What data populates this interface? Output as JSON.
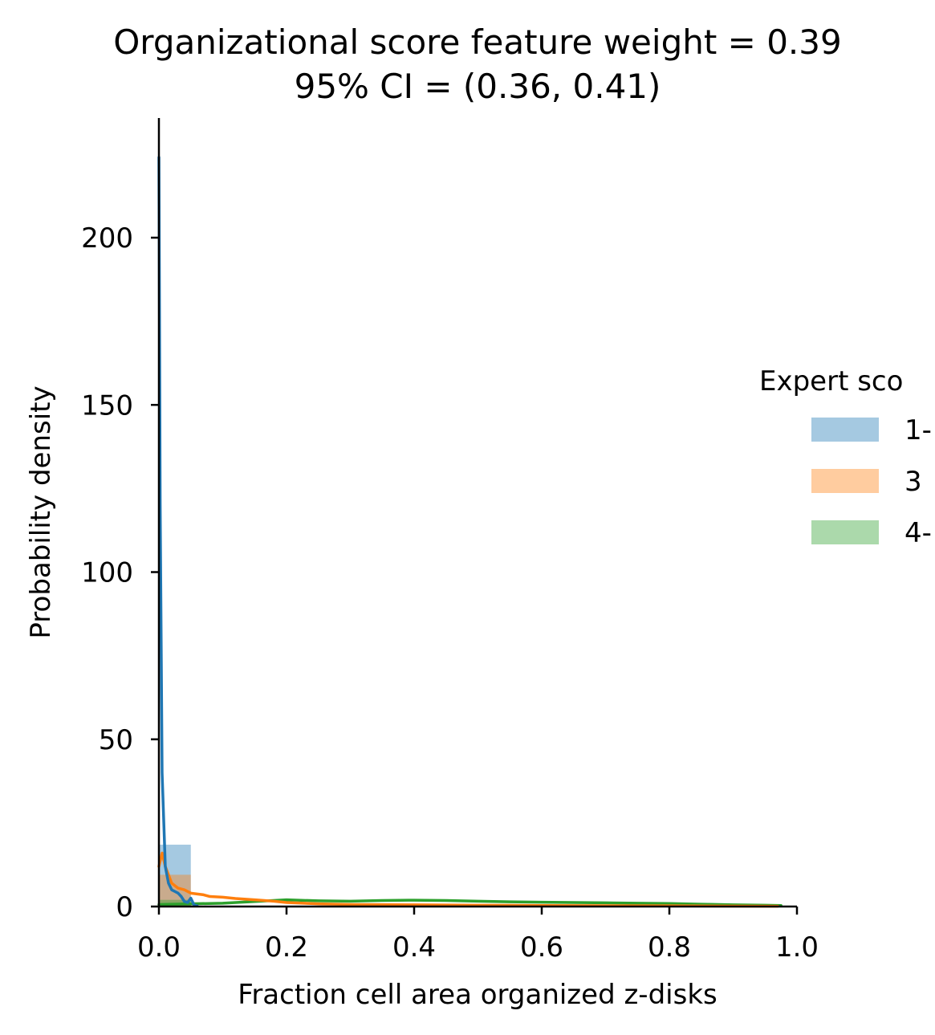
{
  "chart_data": {
    "type": "histogram",
    "title": "Organizational score feature weight = 0.39",
    "subtitle": "95% CI = (0.36, 0.41)",
    "xlabel": "Fraction cell area organized z-disks",
    "ylabel": "Probability density",
    "xlim": [
      0.0,
      1.0
    ],
    "ylim": [
      0,
      236
    ],
    "xticks": [
      0.0,
      0.2,
      0.4,
      0.6,
      0.8,
      1.0
    ],
    "xtick_labels": [
      "0.0",
      "0.2",
      "0.4",
      "0.6",
      "0.8",
      "1.0"
    ],
    "yticks": [
      0,
      50,
      100,
      150,
      200
    ],
    "ytick_labels": [
      "0",
      "50",
      "100",
      "150",
      "200"
    ],
    "grid": false,
    "legend": {
      "title": "Expert sco",
      "placement": "right, outside plot",
      "entries": [
        "1-",
        "3",
        "4-"
      ]
    },
    "series": [
      {
        "name": "1-",
        "color": "#1f77b4",
        "bars": [
          {
            "x0": 0.0,
            "x1": 0.05,
            "y": 18.5
          }
        ],
        "kde": [
          [
            0.0,
            224
          ],
          [
            0.002,
            120
          ],
          [
            0.005,
            40
          ],
          [
            0.01,
            12
          ],
          [
            0.015,
            7
          ],
          [
            0.02,
            5
          ],
          [
            0.025,
            4.5
          ],
          [
            0.03,
            4
          ],
          [
            0.035,
            3
          ],
          [
            0.04,
            1.5
          ],
          [
            0.045,
            1.2
          ],
          [
            0.05,
            2.5
          ],
          [
            0.055,
            0.5
          ],
          [
            0.06,
            0.2
          ]
        ]
      },
      {
        "name": "3",
        "color": "#ff7f0e",
        "bars": [
          {
            "x0": 0.0,
            "x1": 0.05,
            "y": 9.5
          }
        ],
        "kde": [
          [
            0.0,
            12
          ],
          [
            0.005,
            16
          ],
          [
            0.01,
            12
          ],
          [
            0.02,
            7
          ],
          [
            0.03,
            5.5
          ],
          [
            0.04,
            5
          ],
          [
            0.05,
            4
          ],
          [
            0.07,
            3.5
          ],
          [
            0.08,
            3
          ],
          [
            0.1,
            2.8
          ],
          [
            0.12,
            2.4
          ],
          [
            0.15,
            2
          ],
          [
            0.18,
            1.6
          ],
          [
            0.2,
            1.2
          ],
          [
            0.25,
            0.8
          ],
          [
            0.3,
            0.6
          ],
          [
            0.4,
            0.5
          ],
          [
            0.5,
            0.4
          ],
          [
            0.6,
            0.3
          ],
          [
            0.8,
            0.2
          ],
          [
            0.97,
            0.1
          ]
        ]
      },
      {
        "name": "4-",
        "color": "#2ca02c",
        "bars": [
          {
            "x0": 0.0,
            "x1": 0.05,
            "y": 2.0
          }
        ],
        "kde": [
          [
            0.0,
            0.6
          ],
          [
            0.05,
            0.8
          ],
          [
            0.1,
            1.0
          ],
          [
            0.15,
            1.5
          ],
          [
            0.2,
            2.0
          ],
          [
            0.25,
            1.7
          ],
          [
            0.3,
            1.6
          ],
          [
            0.35,
            1.8
          ],
          [
            0.4,
            1.9
          ],
          [
            0.45,
            1.8
          ],
          [
            0.5,
            1.6
          ],
          [
            0.55,
            1.4
          ],
          [
            0.6,
            1.3
          ],
          [
            0.65,
            1.2
          ],
          [
            0.7,
            1.1
          ],
          [
            0.75,
            1.0
          ],
          [
            0.8,
            0.9
          ],
          [
            0.85,
            0.7
          ],
          [
            0.9,
            0.5
          ],
          [
            0.95,
            0.4
          ],
          [
            0.975,
            0.3
          ]
        ]
      }
    ]
  }
}
